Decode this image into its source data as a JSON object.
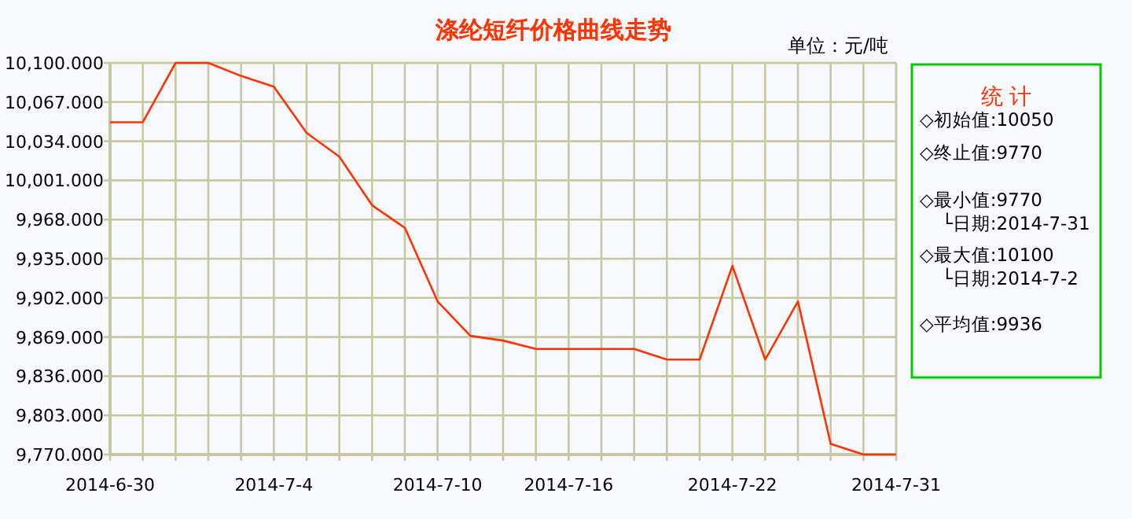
{
  "chart_data": {
    "type": "line",
    "title": "涤纶短纤价格曲线走势",
    "categories": [
      "2014-6-30",
      null,
      null,
      null,
      null,
      "2014-7-4",
      null,
      null,
      null,
      null,
      "2014-7-10",
      null,
      null,
      null,
      "2014-7-16",
      null,
      null,
      null,
      null,
      "2014-7-22",
      null,
      null,
      null,
      null,
      "2014-7-31"
    ],
    "series": [
      {
        "color": "#ff3300",
        "values": [
          10050,
          10050,
          10100,
          10100,
          10089,
          10080,
          10041,
          10021,
          9980,
          9961,
          9899,
          9870,
          9866,
          9859,
          9859,
          9859,
          9859,
          9850,
          9850,
          9929,
          9850,
          9899,
          9779,
          9770,
          9770
        ]
      }
    ],
    "ylim": [
      9770,
      10100
    ],
    "yticks": [
      {
        "value": 9770,
        "label": "9,770.000"
      },
      {
        "value": 9803,
        "label": "9,803.000"
      },
      {
        "value": 9836,
        "label": "9,836.000"
      },
      {
        "value": 9869,
        "label": "9,869.000"
      },
      {
        "value": 9902,
        "label": "9,902.000"
      },
      {
        "value": 9935,
        "label": "9,935.000"
      },
      {
        "value": 9968,
        "label": "9,968.000"
      },
      {
        "value": 10001,
        "label": "10,001.000"
      },
      {
        "value": 10034,
        "label": "10,034.000"
      },
      {
        "value": 10067,
        "label": "10,067.000"
      },
      {
        "value": 10100,
        "label": "10,100.000"
      }
    ],
    "grid": true,
    "marker": "none",
    "line_style": "solid",
    "annotations": [
      "单位：元/吨",
      "统 计",
      "◇初始值:10050",
      "◇终止值:9770",
      "◇最小值:9770",
      "└日期:2014-7-31",
      "◇最大值:10100",
      "└日期:2014-7-2",
      "◇平均值:9936"
    ]
  }
}
